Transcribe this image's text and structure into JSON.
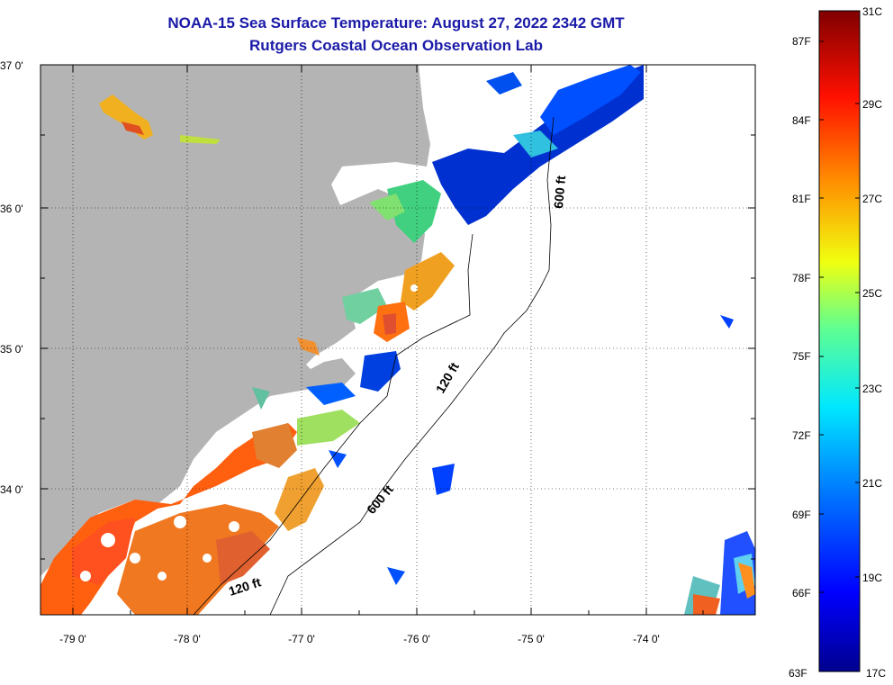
{
  "title": {
    "line1": "NOAA-15 Sea Surface Temperature:  August 27, 2022 2342 GMT",
    "line2": "Rutgers Coastal Ocean Observation Lab"
  },
  "map": {
    "lat_labels": [
      "37 0'",
      "36 0'",
      "35 0'",
      "34 0'"
    ],
    "lon_labels": [
      "-79 0'",
      "-78 0'",
      "-77 0'",
      "-76 0'",
      "-75 0'",
      "-74 0'"
    ],
    "contours": {
      "c600_north": "600 ft",
      "c120_mid": "120 ft",
      "c600_south": "600 ft",
      "c120_south": "120 ft"
    }
  },
  "colorbar": {
    "fahrenheit": [
      "87F",
      "84F",
      "81F",
      "78F",
      "75F",
      "72F",
      "69F",
      "66F",
      "63F"
    ],
    "celsius": [
      "31C",
      "29C",
      "27C",
      "25C",
      "23C",
      "21C",
      "19C",
      "17C"
    ]
  },
  "colors": {
    "title": "#1a1aa8",
    "land": "#b4b4b4",
    "ocean": "#ffffff"
  }
}
